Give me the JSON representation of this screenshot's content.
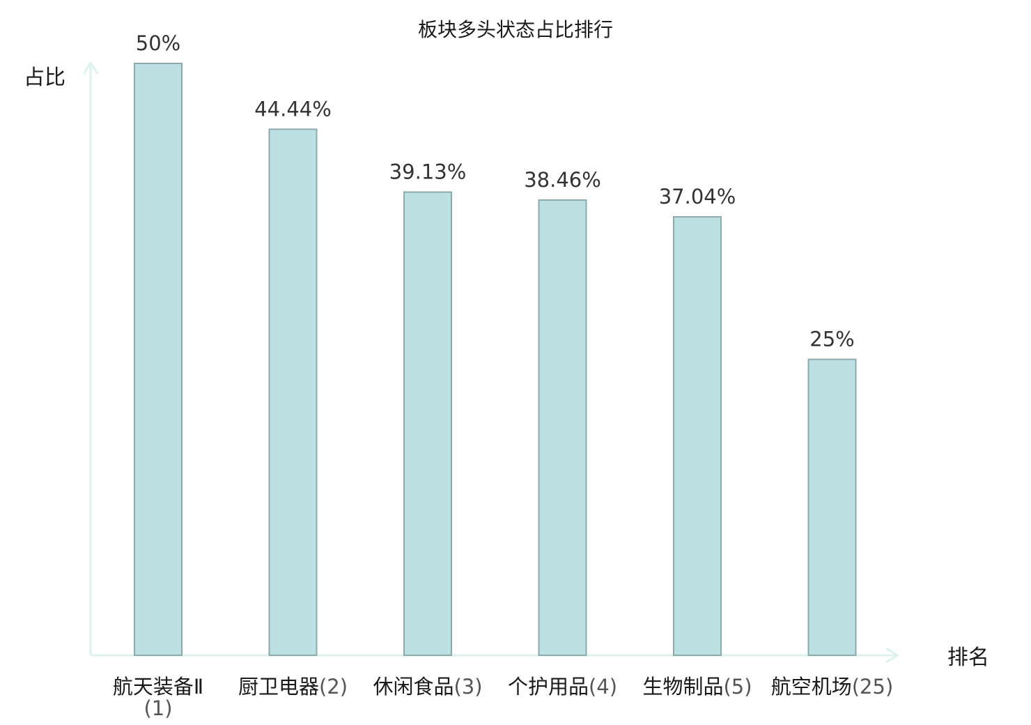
{
  "chart_data": {
    "type": "bar",
    "title": "板块多头状态占比排行",
    "ylabel": "占比",
    "xlabel": "排名",
    "ylim": [
      0,
      50
    ],
    "categories": [
      {
        "name": "航天装备Ⅱ",
        "rank": "(1)"
      },
      {
        "name": "厨卫电器",
        "rank": "(2)"
      },
      {
        "name": "休闲食品",
        "rank": "(3)"
      },
      {
        "name": "个护用品",
        "rank": "(4)"
      },
      {
        "name": "生物制品",
        "rank": "(5)"
      },
      {
        "name": "航空机场",
        "rank": "(25)"
      }
    ],
    "values": [
      50,
      44.44,
      39.13,
      38.46,
      37.04,
      25
    ],
    "value_labels": [
      "50%",
      "44.44%",
      "39.13%",
      "38.46%",
      "37.04%",
      "25%"
    ],
    "highlight_index": 5,
    "grid": false,
    "colors": {
      "bar_fill": "#bde1e3",
      "bar_stroke": "#8ea9ab",
      "axis": "#dff2ef",
      "highlight_text": "#e02020"
    }
  }
}
